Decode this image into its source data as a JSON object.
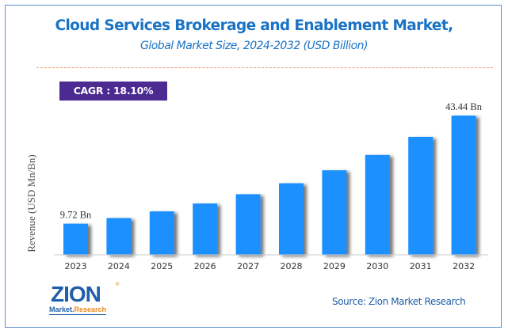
{
  "header": {
    "title": "Cloud Services Brokerage and Enablement Market,",
    "subtitle": "Global Market Size, 2024-2032 (USD Billion)"
  },
  "cagr_label": "CAGR :  18.10%",
  "colors": {
    "bar": "#1e90ff",
    "title": "#1a73c4",
    "cagr_bg": "#4b2a91",
    "divider": "#f0a070"
  },
  "chart_data": {
    "type": "bar",
    "title": "Cloud Services Brokerage and Enablement Market, Global Market Size, 2024-2032 (USD Billion)",
    "xlabel": "",
    "ylabel": "Revenue (USD Mn/Bn)",
    "categories": [
      "2023",
      "2024",
      "2025",
      "2026",
      "2027",
      "2028",
      "2029",
      "2030",
      "2031",
      "2032"
    ],
    "values": [
      9.72,
      11.48,
      13.56,
      16.01,
      18.91,
      22.33,
      26.38,
      31.15,
      36.79,
      43.44
    ],
    "data_labels": [
      {
        "index": 0,
        "text": "9.72 Bn"
      },
      {
        "index": 9,
        "text": "43.44 Bn"
      }
    ],
    "ylim": [
      0,
      45
    ],
    "grid": false,
    "legend": "none",
    "annotation": "CAGR : 18.10%"
  },
  "footer": {
    "logo": {
      "word": "ZION",
      "sub_left": "Market.",
      "sub_right": "Research",
      "mark": "®"
    },
    "source": "Source: Zion Market Research"
  }
}
